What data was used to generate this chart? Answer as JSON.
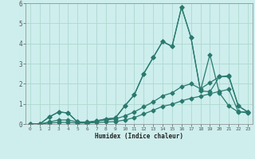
{
  "xlabel": "Humidex (Indice chaleur)",
  "x": [
    0,
    1,
    2,
    3,
    4,
    5,
    6,
    7,
    8,
    9,
    10,
    11,
    12,
    13,
    14,
    15,
    16,
    17,
    18,
    19,
    20,
    21,
    22,
    23
  ],
  "line1": [
    0.0,
    0.0,
    0.35,
    0.6,
    0.55,
    0.1,
    0.05,
    0.15,
    0.25,
    0.3,
    0.9,
    1.45,
    2.5,
    3.3,
    4.1,
    3.85,
    5.8,
    4.3,
    1.65,
    1.6,
    2.35,
    2.35,
    0.9,
    0.6
  ],
  "line2": [
    0.0,
    0.0,
    0.35,
    0.6,
    0.55,
    0.1,
    0.05,
    0.15,
    0.25,
    0.3,
    0.9,
    1.45,
    2.5,
    3.3,
    4.1,
    3.85,
    5.8,
    4.3,
    1.65,
    3.45,
    1.55,
    0.9,
    0.6,
    0.6
  ],
  "line3": [
    0.0,
    0.0,
    0.1,
    0.2,
    0.2,
    0.1,
    0.1,
    0.15,
    0.2,
    0.25,
    0.4,
    0.6,
    0.85,
    1.1,
    1.4,
    1.55,
    1.85,
    2.0,
    1.75,
    2.05,
    2.35,
    2.4,
    0.9,
    0.6
  ],
  "line4": [
    0.0,
    0.0,
    0.05,
    0.08,
    0.08,
    0.05,
    0.05,
    0.07,
    0.1,
    0.12,
    0.2,
    0.32,
    0.5,
    0.68,
    0.88,
    0.98,
    1.15,
    1.28,
    1.38,
    1.5,
    1.62,
    1.72,
    0.62,
    0.55
  ],
  "line_color": "#2a7a6e",
  "bg_color": "#cdeeed",
  "grid_color": "#aed8ce",
  "ylim": [
    0,
    6
  ],
  "yticks": [
    0,
    1,
    2,
    3,
    4,
    5,
    6
  ],
  "xlim": [
    -0.5,
    23.5
  ]
}
